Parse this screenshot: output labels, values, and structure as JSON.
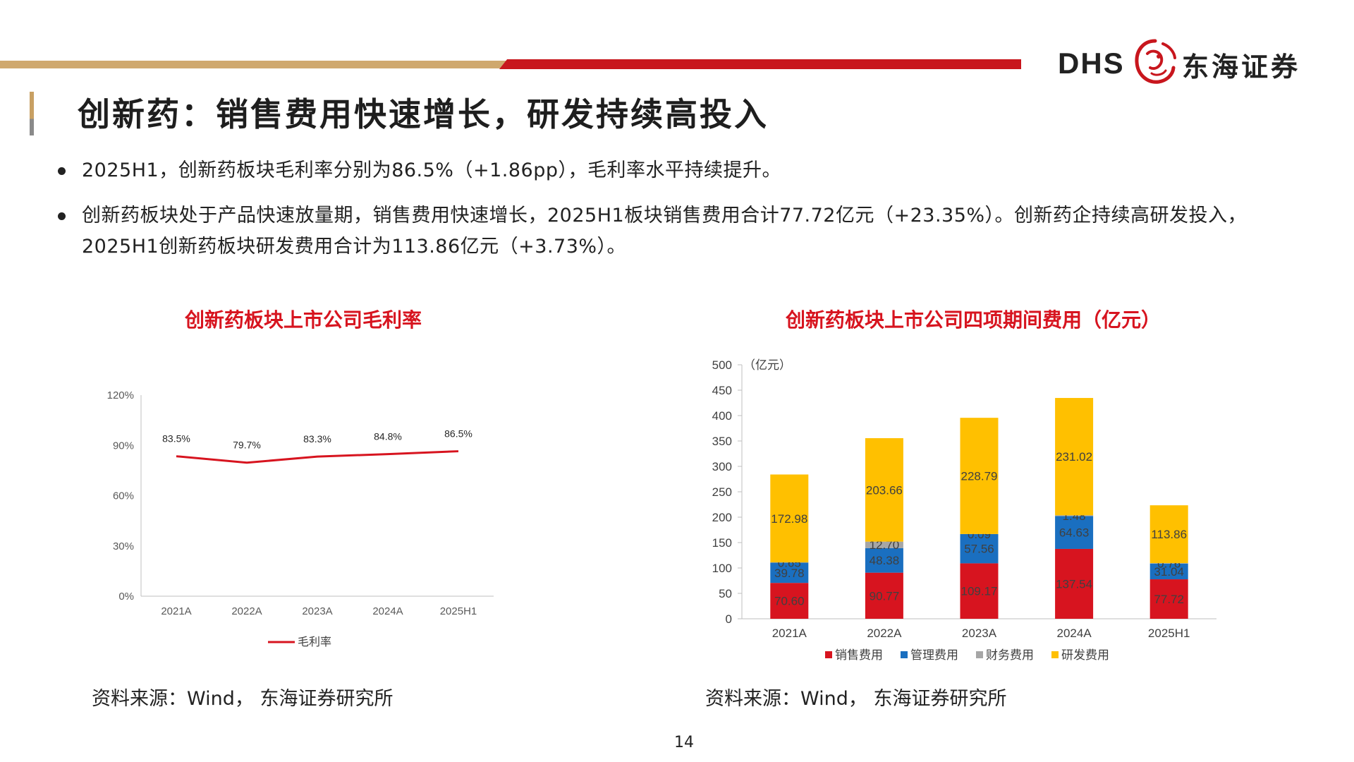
{
  "header": {
    "logo_latin": "DHS",
    "logo_chinese": "东海证券",
    "logo_mark": "dragon-emblem",
    "brand_red": "#c8161d",
    "brand_tan": "#cfa86e"
  },
  "title": "创新药：销售费用快速增长，研发持续高投入",
  "bullets": [
    "2025H1，创新药板块毛利率分别为86.5%（+1.86pp），毛利率水平持续提升。",
    "创新药板块处于产品快速放量期，销售费用快速增长，2025H1板块销售费用合计77.72亿元（+23.35%）。创新药企持续高研发投入， 2025H1创新药板块研发费用合计为113.86亿元（+3.73%）。"
  ],
  "chart_data": [
    {
      "type": "line",
      "title": "创新药板块上市公司毛利率",
      "x": [
        "2021A",
        "2022A",
        "2023A",
        "2024A",
        "2025H1"
      ],
      "series": [
        {
          "name": "毛利率",
          "values": [
            83.5,
            79.7,
            83.3,
            84.8,
            86.5
          ],
          "labels": [
            "83.5%",
            "79.7%",
            "83.3%",
            "84.8%",
            "86.5%"
          ],
          "color": "#d7141f"
        }
      ],
      "yticks": [
        "0%",
        "30%",
        "60%",
        "90%",
        "120%"
      ],
      "ylim": [
        0,
        120
      ],
      "grid": false,
      "legend": "bottom"
    },
    {
      "type": "bar",
      "stacked": true,
      "title": "创新药板块上市公司四项期间费用（亿元）",
      "unit_label": "（亿元）",
      "categories": [
        "2021A",
        "2022A",
        "2023A",
        "2024A",
        "2025H1"
      ],
      "series": [
        {
          "name": "销售费用",
          "values": [
            70.6,
            90.77,
            109.17,
            137.54,
            77.72
          ],
          "labels": [
            "70.60",
            "90.77",
            "109.17",
            "137.54",
            "77.72"
          ],
          "color": "#d7141f"
        },
        {
          "name": "管理费用",
          "values": [
            39.78,
            48.38,
            57.56,
            64.63,
            31.04
          ],
          "labels": [
            "39.78",
            "48.38",
            "57.56",
            "64.63",
            "31.04"
          ],
          "color": "#1a6fc0"
        },
        {
          "name": "财务费用",
          "values": [
            0.65,
            12.7,
            0.09,
            1.48,
            0.76
          ],
          "labels": [
            "0.65",
            "12.70",
            "0.09",
            "1.48",
            "0.76"
          ],
          "color": "#a6a6a6"
        },
        {
          "name": "研发费用",
          "values": [
            172.98,
            203.66,
            228.79,
            231.02,
            113.86
          ],
          "labels": [
            "172.98",
            "203.66",
            "228.79",
            "231.02",
            "113.86"
          ],
          "color": "#ffc000"
        }
      ],
      "yticks": [
        "0",
        "50",
        "100",
        "150",
        "200",
        "250",
        "300",
        "350",
        "400",
        "450",
        "500"
      ],
      "ylim": [
        0,
        500
      ],
      "grid": false,
      "legend": "bottom"
    }
  ],
  "sources": [
    "资料来源：Wind， 东海证券研究所",
    "资料来源：Wind， 东海证券研究所"
  ],
  "page_number": "14"
}
